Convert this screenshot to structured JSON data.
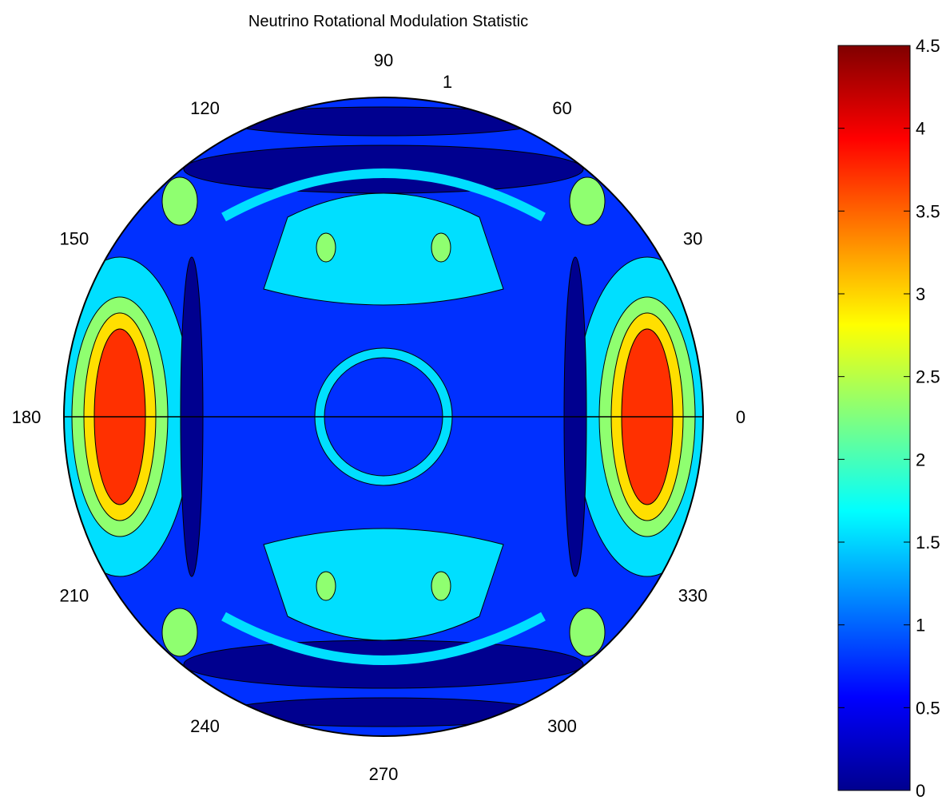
{
  "chart_data": {
    "type": "polar-contour",
    "title": "Neutrino Rotational Modulation Statistic",
    "angular_ticks": [
      "0",
      "30",
      "60",
      "90",
      "120",
      "150",
      "180",
      "210",
      "240",
      "270",
      "300",
      "330"
    ],
    "radial_ticks": [
      "1"
    ],
    "colorbar": {
      "min": 0,
      "max": 4.5,
      "ticks": [
        "0",
        "0.5",
        "1",
        "1.5",
        "2",
        "2.5",
        "3",
        "3.5",
        "4",
        "4.5"
      ],
      "colormap": "jet"
    },
    "contour_levels": [
      0,
      0.5,
      1,
      1.5,
      2,
      2.5,
      3,
      3.5,
      4,
      4.5
    ],
    "regions": {
      "background_level": 1.0,
      "ring_level": 1.5,
      "ring_radius": 0.2,
      "lateral_peaks": {
        "angles_deg": [
          0,
          180
        ],
        "max_value": 4.2
      },
      "cap_patches": {
        "angles_deg": [
          90,
          270
        ],
        "value": 1.7
      }
    },
    "grid": false,
    "colors": {
      "level_0": "#00008f",
      "level_1": "#0030ff",
      "level_2": "#00dfff",
      "level_3": "#8fff70",
      "level_4": "#ffdf00",
      "level_5": "#ff3000",
      "level_6": "#8f0000"
    }
  }
}
